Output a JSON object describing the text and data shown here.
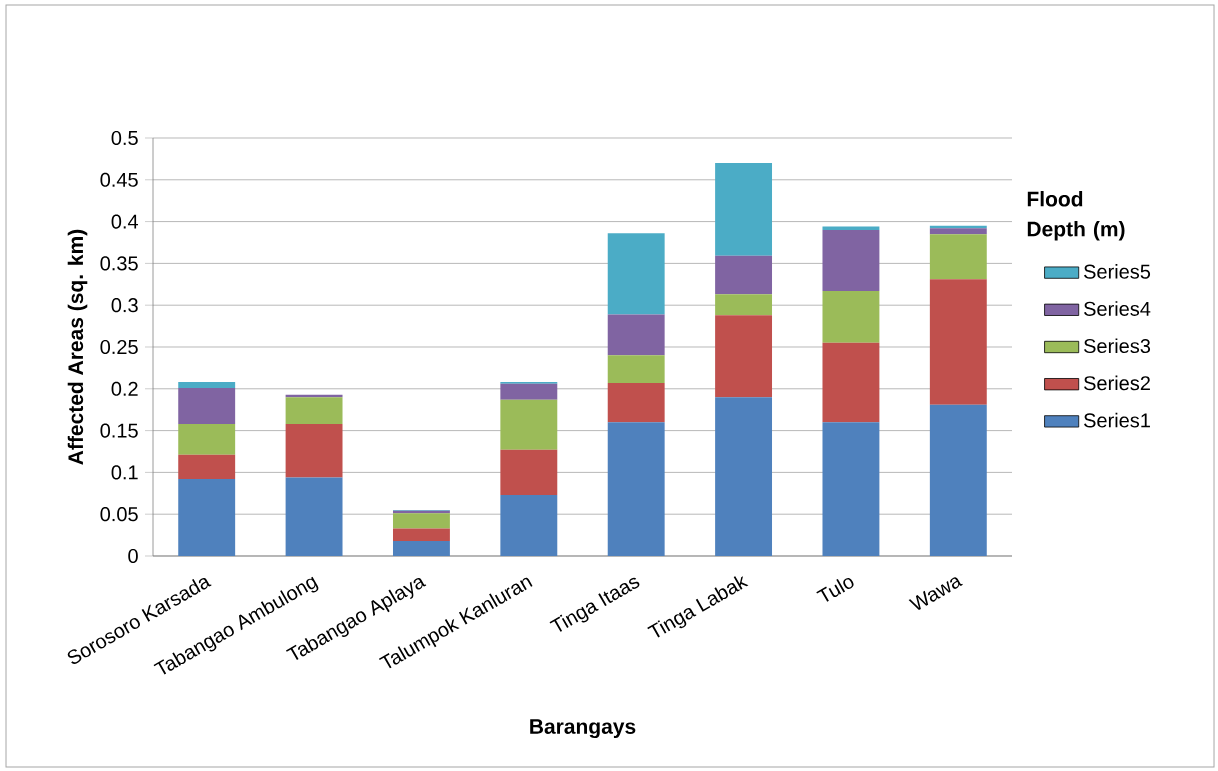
{
  "chart_data": {
    "type": "bar",
    "stacked": true,
    "xlabel": "Barangays",
    "ylabel": "Affected Areas (sq. km)",
    "legend_title": "Flood Depth (m)",
    "categories": [
      "Sorosoro Karsada",
      "Tabangao Ambulong",
      "Tabangao Aplaya",
      "Talumpok Kanluran",
      "Tinga Itaas",
      "Tinga Labak",
      "Tulo",
      "Wawa"
    ],
    "series": [
      {
        "name": "Series1",
        "color": "#4f81bd",
        "values": [
          0.092,
          0.094,
          0.018,
          0.073,
          0.16,
          0.19,
          0.16,
          0.181
        ]
      },
      {
        "name": "Series2",
        "color": "#c0504d",
        "values": [
          0.029,
          0.064,
          0.015,
          0.054,
          0.047,
          0.098,
          0.095,
          0.15
        ]
      },
      {
        "name": "Series3",
        "color": "#9bbb59",
        "values": [
          0.037,
          0.032,
          0.018,
          0.06,
          0.033,
          0.025,
          0.062,
          0.054
        ]
      },
      {
        "name": "Series4",
        "color": "#8064a2",
        "values": [
          0.043,
          0.003,
          0.003,
          0.019,
          0.049,
          0.046,
          0.073,
          0.007
        ]
      },
      {
        "name": "Series5",
        "color": "#4bacc6",
        "values": [
          0.007,
          0.0,
          0.001,
          0.002,
          0.097,
          0.111,
          0.004,
          0.003
        ]
      }
    ],
    "ylim": [
      0,
      0.5
    ],
    "yticks": [
      0,
      0.05,
      0.1,
      0.15,
      0.2,
      0.25,
      0.3,
      0.35,
      0.4,
      0.45,
      0.5
    ],
    "grid": "y",
    "legend": "right"
  }
}
